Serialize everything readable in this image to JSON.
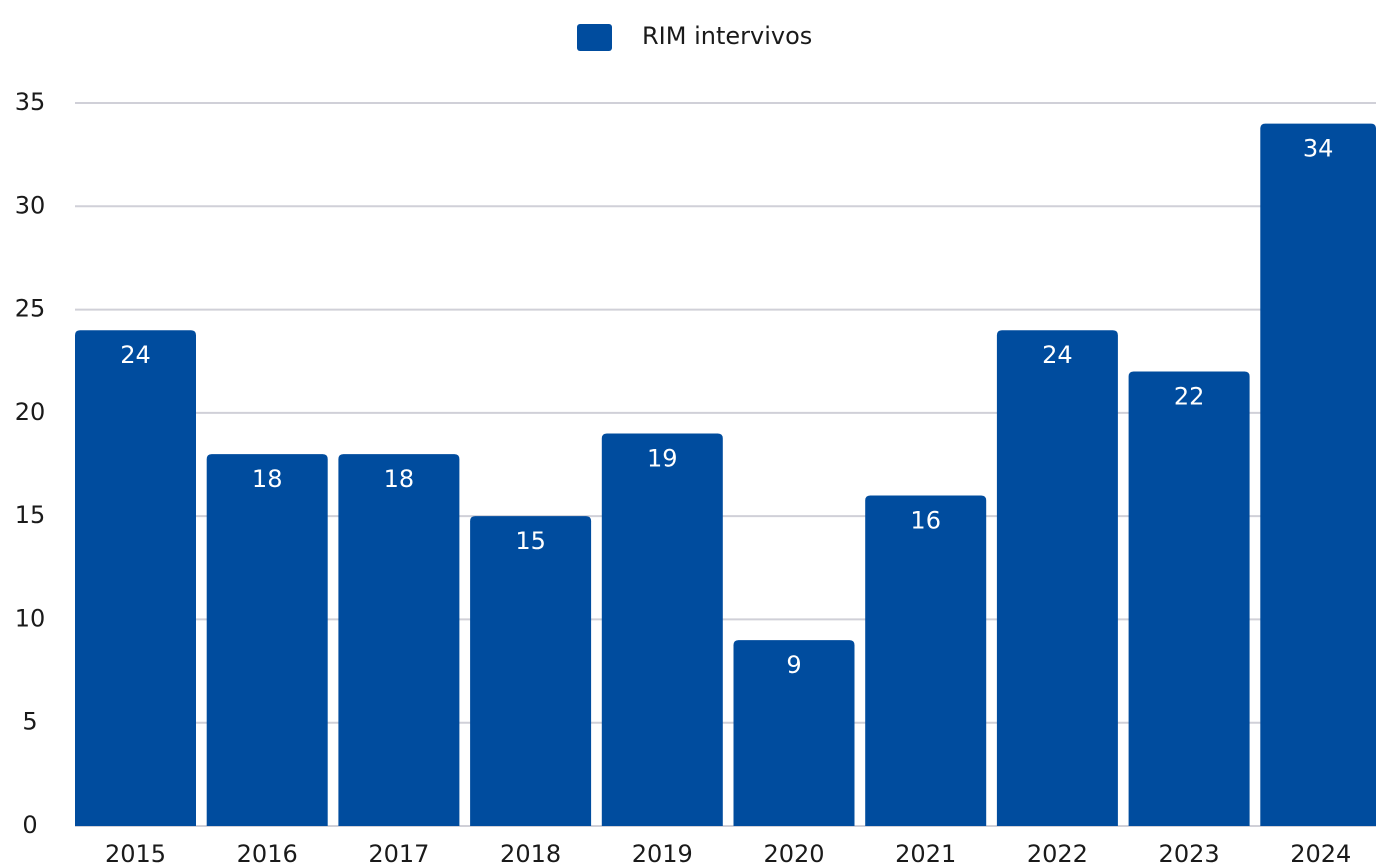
{
  "chart_data": {
    "type": "bar",
    "categories": [
      "2015",
      "2016",
      "2017",
      "2018",
      "2019",
      "2020",
      "2021",
      "2022",
      "2023",
      "2024"
    ],
    "series": [
      {
        "name": "RIM intervivos",
        "color": "#004c9e",
        "values": [
          24,
          18,
          18,
          15,
          19,
          9,
          16,
          24,
          22,
          34
        ]
      }
    ],
    "ylim": [
      0,
      35
    ],
    "yticks": [
      0,
      5,
      10,
      15,
      20,
      25,
      30,
      35
    ],
    "grid": true,
    "legend": "top"
  }
}
